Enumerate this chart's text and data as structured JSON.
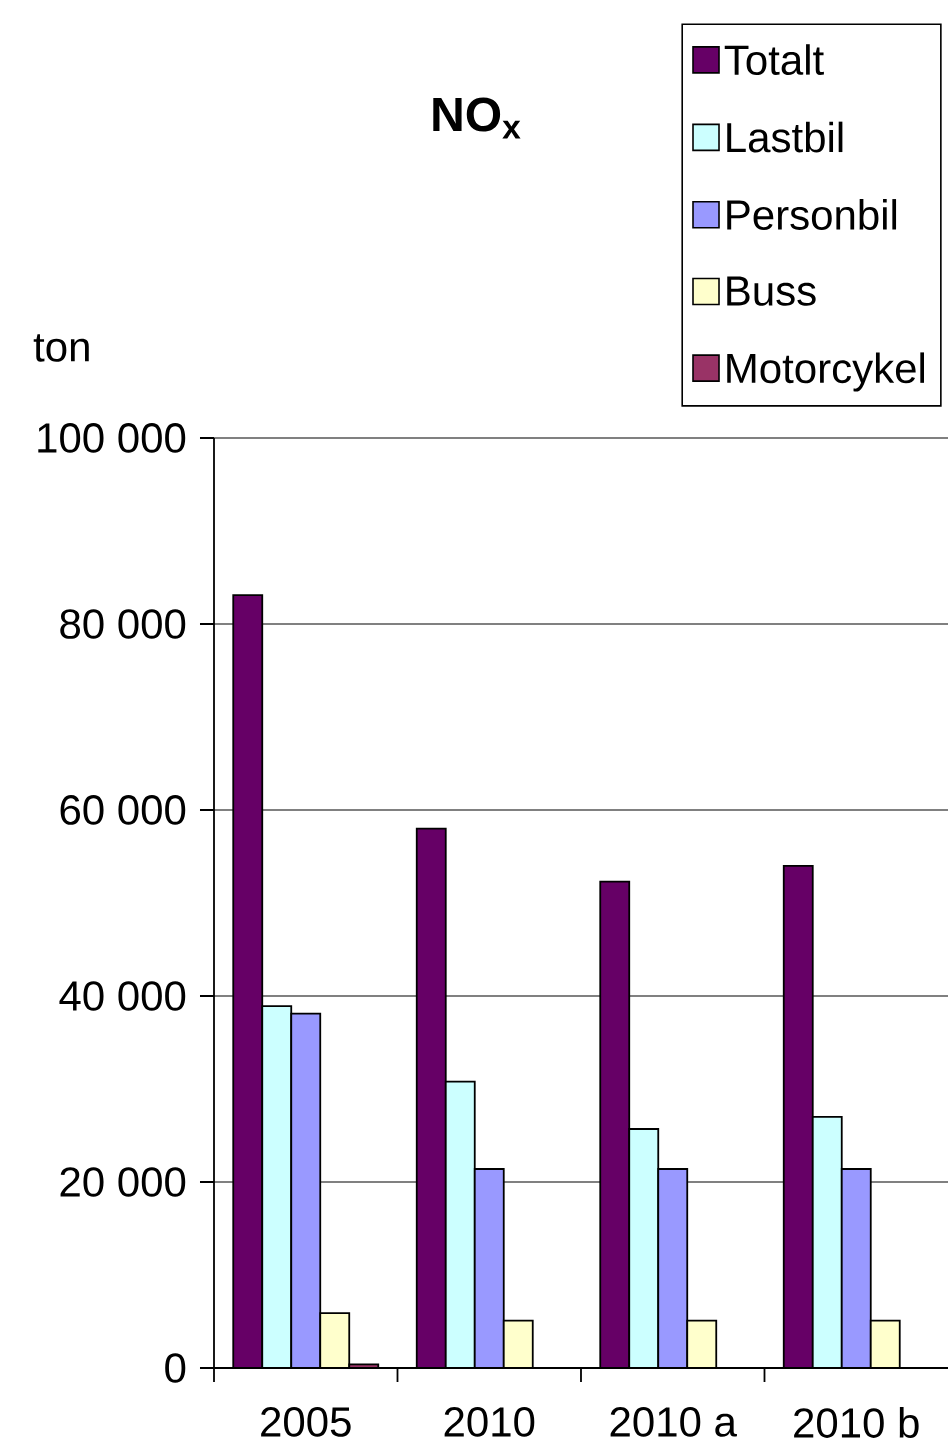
{
  "chart_data": {
    "type": "bar",
    "title": "NO$_{x}$",
    "ylabel": "ton",
    "categories": [
      "2005",
      "2010",
      "2010 a",
      "2010 b"
    ],
    "series": [
      {
        "name": "Totalt",
        "color": "#660066",
        "values": [
          83100,
          58000,
          52300,
          54000
        ]
      },
      {
        "name": "Lastbil",
        "color": "#ccffff",
        "values": [
          38900,
          30800,
          25700,
          27000
        ]
      },
      {
        "name": "Personbil",
        "color": "#9999ff",
        "values": [
          38100,
          21400,
          21400,
          21400
        ]
      },
      {
        "name": "Buss",
        "color": "#ffffcc",
        "values": [
          5900,
          5100,
          5100,
          5100
        ]
      },
      {
        "name": "Motorcykel",
        "color": "#993366",
        "values": [
          400,
          null,
          null,
          null
        ]
      }
    ],
    "ylim": [
      0,
      100000
    ],
    "yticks": [
      0,
      {
        "value": 20000,
        "label": "20 000"
      },
      {
        "value": 40000,
        "label": "40 000"
      },
      {
        "value": 60000,
        "label": "60 000"
      },
      {
        "value": 80000,
        "label": "80 000"
      },
      {
        "value": 100000,
        "label": "100 000"
      }
    ],
    "grid": "y",
    "legend": "top right"
  }
}
